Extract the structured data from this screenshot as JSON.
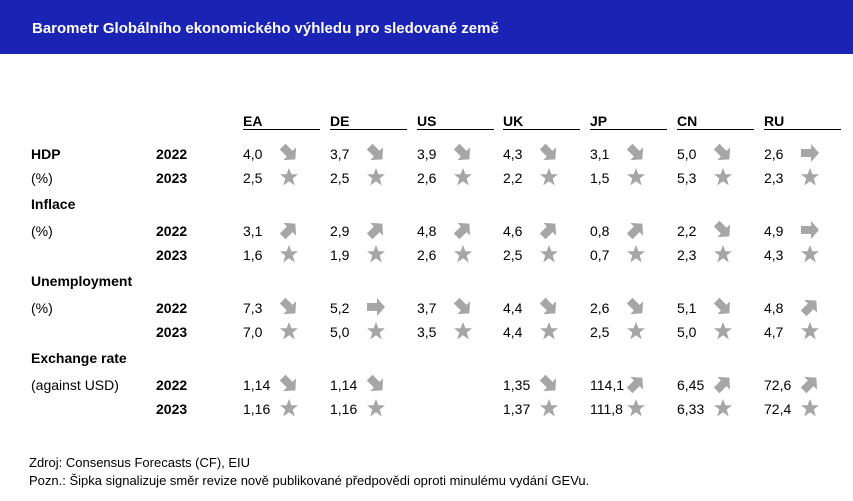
{
  "title": "Barometr Globálního ekonomického výhledu pro sledované země",
  "columns": [
    "EA",
    "DE",
    "US",
    "UK",
    "JP",
    "CN",
    "RU"
  ],
  "sections": [
    {
      "label": "HDP",
      "sublabel": "(%)",
      "rows": [
        {
          "year": "2022",
          "cells": [
            {
              "value": "4,0",
              "icon": "arrow-down-right"
            },
            {
              "value": "3,7",
              "icon": "arrow-down-right"
            },
            {
              "value": "3,9",
              "icon": "arrow-down-right"
            },
            {
              "value": "4,3",
              "icon": "arrow-down-right"
            },
            {
              "value": "3,1",
              "icon": "arrow-down-right"
            },
            {
              "value": "5,0",
              "icon": "arrow-down-right"
            },
            {
              "value": "2,6",
              "icon": "arrow-right"
            }
          ]
        },
        {
          "year": "2023",
          "cells": [
            {
              "value": "2,5",
              "icon": "star"
            },
            {
              "value": "2,5",
              "icon": "star"
            },
            {
              "value": "2,6",
              "icon": "star"
            },
            {
              "value": "2,2",
              "icon": "star"
            },
            {
              "value": "1,5",
              "icon": "star"
            },
            {
              "value": "5,3",
              "icon": "star"
            },
            {
              "value": "2,3",
              "icon": "star"
            }
          ]
        }
      ]
    },
    {
      "label": "Inflace",
      "sublabel": "(%)",
      "rows": [
        {
          "year": "2022",
          "cells": [
            {
              "value": "3,1",
              "icon": "arrow-up-right"
            },
            {
              "value": "2,9",
              "icon": "arrow-up-right"
            },
            {
              "value": "4,8",
              "icon": "arrow-up-right"
            },
            {
              "value": "4,6",
              "icon": "arrow-up-right"
            },
            {
              "value": "0,8",
              "icon": "arrow-up-right"
            },
            {
              "value": "2,2",
              "icon": "arrow-down-right"
            },
            {
              "value": "4,9",
              "icon": "arrow-right"
            }
          ]
        },
        {
          "year": "2023",
          "cells": [
            {
              "value": "1,6",
              "icon": "star"
            },
            {
              "value": "1,9",
              "icon": "star"
            },
            {
              "value": "2,6",
              "icon": "star"
            },
            {
              "value": "2,5",
              "icon": "star"
            },
            {
              "value": "0,7",
              "icon": "star"
            },
            {
              "value": "2,3",
              "icon": "star"
            },
            {
              "value": "4,3",
              "icon": "star"
            }
          ]
        }
      ]
    },
    {
      "label": "Unemployment",
      "sublabel": "(%)",
      "rows": [
        {
          "year": "2022",
          "cells": [
            {
              "value": "7,3",
              "icon": "arrow-down-right"
            },
            {
              "value": "5,2",
              "icon": "arrow-right"
            },
            {
              "value": "3,7",
              "icon": "arrow-down-right"
            },
            {
              "value": "4,4",
              "icon": "arrow-down-right"
            },
            {
              "value": "2,6",
              "icon": "arrow-down-right"
            },
            {
              "value": "5,1",
              "icon": "arrow-down-right"
            },
            {
              "value": "4,8",
              "icon": "arrow-up-right"
            }
          ]
        },
        {
          "year": "2023",
          "cells": [
            {
              "value": "7,0",
              "icon": "star"
            },
            {
              "value": "5,0",
              "icon": "star"
            },
            {
              "value": "3,5",
              "icon": "star"
            },
            {
              "value": "4,4",
              "icon": "star"
            },
            {
              "value": "2,5",
              "icon": "star"
            },
            {
              "value": "5,0",
              "icon": "star"
            },
            {
              "value": "4,7",
              "icon": "star"
            }
          ]
        }
      ]
    },
    {
      "label": "Exchange rate",
      "sublabel": "(against USD)",
      "rows": [
        {
          "year": "2022",
          "cells": [
            {
              "value": "1,14",
              "icon": "arrow-down-right"
            },
            {
              "value": "1,14",
              "icon": "arrow-down-right"
            },
            {
              "value": "",
              "icon": ""
            },
            {
              "value": "1,35",
              "icon": "arrow-down-right"
            },
            {
              "value": "114,1",
              "icon": "arrow-up-right"
            },
            {
              "value": "6,45",
              "icon": "arrow-up-right"
            },
            {
              "value": "72,6",
              "icon": "arrow-up-right"
            }
          ]
        },
        {
          "year": "2023",
          "cells": [
            {
              "value": "1,16",
              "icon": "star"
            },
            {
              "value": "1,16",
              "icon": "star"
            },
            {
              "value": "",
              "icon": ""
            },
            {
              "value": "1,37",
              "icon": "star"
            },
            {
              "value": "111,8",
              "icon": "star"
            },
            {
              "value": "6,33",
              "icon": "star"
            },
            {
              "value": "72,4",
              "icon": "star"
            }
          ]
        }
      ]
    }
  ],
  "footer": {
    "source": "Zdroj: Consensus Forecasts (CF), EIU",
    "note": "Pozn.: Šipka signalizuje směr revize nově publikované předpovědi oproti minulému vydání GEVu."
  },
  "colors": {
    "title_bar": "#1a23b3",
    "title_text": "#ffffff",
    "icon_fill": "#a6a6a6"
  }
}
